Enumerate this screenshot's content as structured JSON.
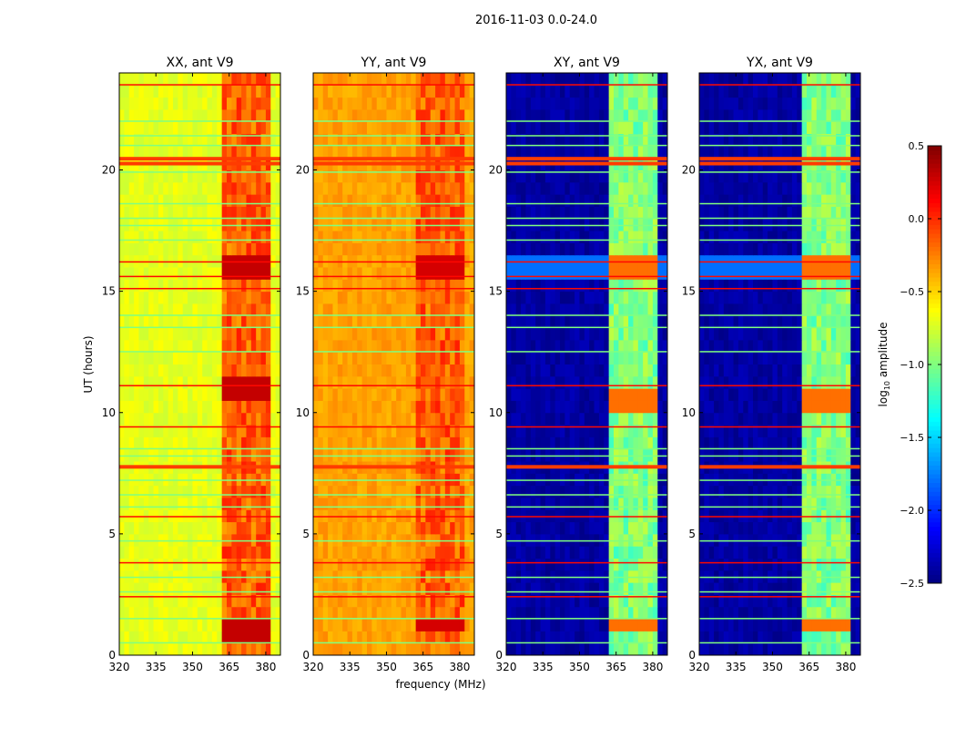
{
  "chart_data": {
    "type": "heatmap",
    "title": "2016-11-03 0.0-24.0",
    "xlabel": "frequency (MHz)",
    "ylabel": "UT (hours)",
    "xlim": [
      320,
      386
    ],
    "ylim": [
      0,
      24
    ],
    "xticks": [
      "320",
      "335",
      "350",
      "365",
      "380"
    ],
    "xtick_values": [
      320,
      335,
      350,
      365,
      380
    ],
    "yticks": [
      "0",
      "5",
      "10",
      "15",
      "20"
    ],
    "ytick_values": [
      0,
      5,
      10,
      15,
      20
    ],
    "colorbar": {
      "label_main": "log",
      "label_sub": "10",
      "label_rest": " amplitude",
      "range": [
        -2.5,
        0.5
      ],
      "ticks": [
        "0.5",
        "0.0",
        "−0.5",
        "−1.0",
        "−1.5",
        "−2.0",
        "−2.5"
      ],
      "tick_values": [
        0.5,
        0.0,
        -0.5,
        -1.0,
        -1.5,
        -2.0,
        -2.5
      ],
      "colormap": "jet"
    },
    "panels": [
      {
        "title": "XX, ant V9",
        "base": -0.7,
        "band": -0.15,
        "peak_hours": [
          [
            15.5,
            16.5
          ],
          [
            10.5,
            11.5
          ],
          [
            0.5,
            1.5
          ]
        ],
        "peak": 0.3
      },
      {
        "title": "YY, ant V9",
        "base": -0.35,
        "band": -0.15,
        "peak_hours": [
          [
            15.6,
            16.3
          ],
          [
            1.0,
            1.6
          ]
        ],
        "peak": 0.25
      },
      {
        "title": "XY, ant V9",
        "base": -2.4,
        "band": -1.0,
        "peak_hours": [
          [
            15.5,
            16.3
          ],
          [
            10.2,
            11.0
          ],
          [
            1.2,
            1.7
          ]
        ],
        "peak": -0.2
      },
      {
        "title": "YX, ant V9",
        "base": -2.4,
        "band": -1.0,
        "peak_hours": [
          [
            15.5,
            16.3
          ],
          [
            10.2,
            11.0
          ],
          [
            1.2,
            1.7
          ]
        ],
        "peak": -0.2
      }
    ],
    "band_columns_mhz": [
      [
        362,
        366
      ],
      [
        367,
        371
      ],
      [
        372,
        375.5
      ],
      [
        377,
        381
      ]
    ],
    "flagged_rows": [
      {
        "hour": 23.5,
        "value": 0.1
      },
      {
        "hour": 22.0,
        "value": -1.0
      },
      {
        "hour": 21.4,
        "value": -1.0
      },
      {
        "hour": 21.0,
        "value": -1.0
      },
      {
        "hour": 20.5,
        "value": -0.05
      },
      {
        "hour": 20.3,
        "value": -0.05
      },
      {
        "hour": 19.9,
        "value": -1.0
      },
      {
        "hour": 18.6,
        "value": -1.0
      },
      {
        "hour": 18.0,
        "value": -1.0
      },
      {
        "hour": 17.7,
        "value": -1.0
      },
      {
        "hour": 17.1,
        "value": -1.0
      },
      {
        "hour": 16.2,
        "value": 0.1
      },
      {
        "hour": 15.6,
        "value": 0.1
      },
      {
        "hour": 15.1,
        "value": 0.1
      },
      {
        "hour": 14.0,
        "value": -1.0
      },
      {
        "hour": 13.5,
        "value": -1.0
      },
      {
        "hour": 12.5,
        "value": -1.0
      },
      {
        "hour": 11.1,
        "value": 0.1
      },
      {
        "hour": 9.4,
        "value": 0.1
      },
      {
        "hour": 8.5,
        "value": -1.0
      },
      {
        "hour": 8.2,
        "value": -1.0
      },
      {
        "hour": 7.8,
        "value": -0.05
      },
      {
        "hour": 7.2,
        "value": -1.0
      },
      {
        "hour": 6.6,
        "value": -1.0
      },
      {
        "hour": 6.1,
        "value": -1.0
      },
      {
        "hour": 5.7,
        "value": 0.1
      },
      {
        "hour": 4.7,
        "value": -1.0
      },
      {
        "hour": 3.8,
        "value": 0.1
      },
      {
        "hour": 3.2,
        "value": -1.0
      },
      {
        "hour": 2.6,
        "value": -1.0
      },
      {
        "hour": 2.4,
        "value": 0.1
      },
      {
        "hour": 1.5,
        "value": -1.0
      },
      {
        "hour": 0.5,
        "value": -1.0
      }
    ]
  }
}
